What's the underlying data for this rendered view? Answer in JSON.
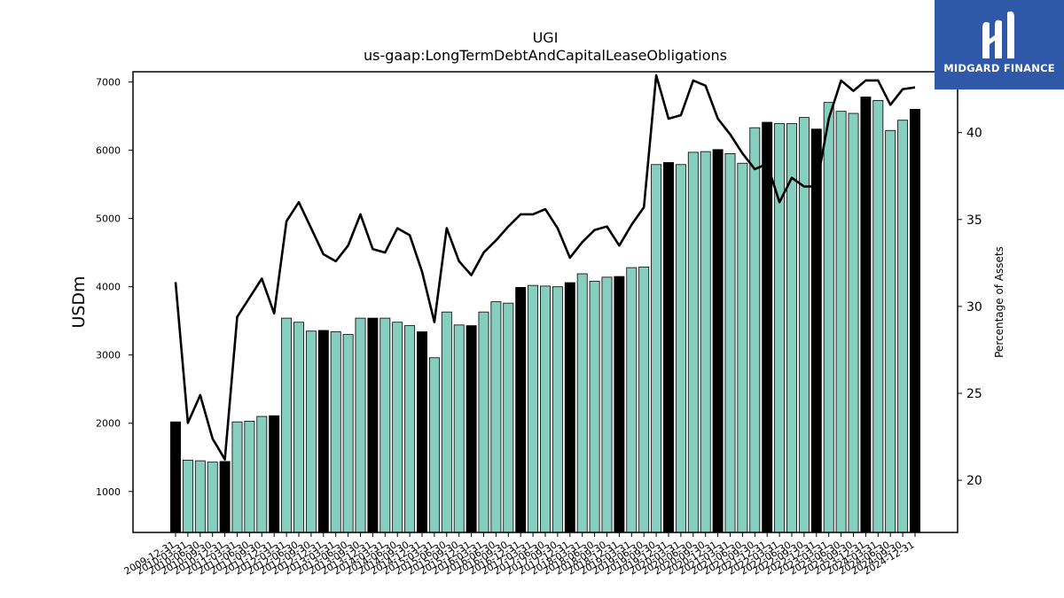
{
  "chart_data": {
    "type": "bar+line",
    "title": "UGI",
    "subtitle": "us-gaap:LongTermDebtAndCapitalLeaseObligations",
    "ylabel_left": "USDm",
    "ylabel_right": "Percentage of Assets",
    "ylim_left": [
      400,
      7150
    ],
    "ylim_right": [
      17,
      43.5
    ],
    "yticks_left": [
      1000,
      2000,
      3000,
      4000,
      5000,
      6000,
      7000
    ],
    "yticks_right": [
      20,
      25,
      30,
      35,
      40
    ],
    "categories": [
      "2009-12-31",
      "2010-03-31",
      "2010-06-30",
      "2010-09-30",
      "2010-12-31",
      "2011-03-31",
      "2011-06-30",
      "2011-09-30",
      "2011-12-31",
      "2012-03-31",
      "2012-06-30",
      "2012-09-30",
      "2012-12-31",
      "2013-03-31",
      "2013-06-30",
      "2013-09-30",
      "2013-12-31",
      "2014-03-31",
      "2014-06-30",
      "2014-09-30",
      "2014-12-31",
      "2015-03-31",
      "2015-06-30",
      "2015-09-30",
      "2015-12-31",
      "2016-03-31",
      "2016-06-30",
      "2016-09-30",
      "2016-12-31",
      "2017-03-31",
      "2017-06-30",
      "2017-09-30",
      "2017-12-31",
      "2018-03-31",
      "2018-06-30",
      "2018-09-30",
      "2018-12-31",
      "2019-03-31",
      "2019-06-30",
      "2019-09-30",
      "2019-12-31",
      "2020-03-31",
      "2020-06-30",
      "2020-09-30",
      "2020-12-31",
      "2021-03-31",
      "2021-06-30",
      "2021-09-30",
      "2021-12-31",
      "2022-03-31",
      "2022-06-30",
      "2022-09-30",
      "2022-12-31",
      "2023-03-31",
      "2023-06-30",
      "2023-09-30",
      "2023-12-31",
      "2024-03-31",
      "2024-06-30",
      "2024-09-30",
      "2024-12-31"
    ],
    "bar_series": {
      "name": "",
      "values": [
        2020,
        1460,
        1450,
        1430,
        1440,
        2020,
        2030,
        2100,
        2110,
        3540,
        3480,
        3350,
        3360,
        3340,
        3300,
        3540,
        3540,
        3540,
        3480,
        3430,
        3340,
        2960,
        3630,
        3440,
        3430,
        3630,
        3780,
        3760,
        3990,
        4020,
        4010,
        4000,
        4060,
        4190,
        4080,
        4140,
        4150,
        4280,
        4290,
        5790,
        5820,
        5790,
        5970,
        5980,
        6010,
        5950,
        5810,
        6330,
        6410,
        6390,
        6390,
        6480,
        6310,
        6700,
        6570,
        6540,
        6780,
        6730,
        6290,
        6440,
        6600
      ],
      "highlight_color": "#000000",
      "normal_color": "#86cfbe",
      "highlight_every": 4
    },
    "line_series": {
      "name": "",
      "color": "#000000",
      "values": [
        31.4,
        23.3,
        24.9,
        22.4,
        21.2,
        29.4,
        30.5,
        31.6,
        29.6,
        34.9,
        36.0,
        34.5,
        33.0,
        32.6,
        33.5,
        35.3,
        33.3,
        33.1,
        34.5,
        34.1,
        32.0,
        29.1,
        34.5,
        32.6,
        31.8,
        33.1,
        33.8,
        34.6,
        35.3,
        35.3,
        35.6,
        34.5,
        32.8,
        33.7,
        34.4,
        34.6,
        33.5,
        34.7,
        35.7,
        43.3,
        40.8,
        41.0,
        43.0,
        42.7,
        40.8,
        39.9,
        38.8,
        37.9,
        38.2,
        36.0,
        37.4,
        36.9,
        36.9,
        40.8,
        43.0,
        42.4,
        43.0,
        43.0,
        41.6,
        42.5,
        42.6
      ]
    }
  },
  "branding": {
    "logo_text": "MIDGARD FINANCE",
    "logo_icon": "midgard-m-icon",
    "logo_bg": "#2f58a8"
  }
}
